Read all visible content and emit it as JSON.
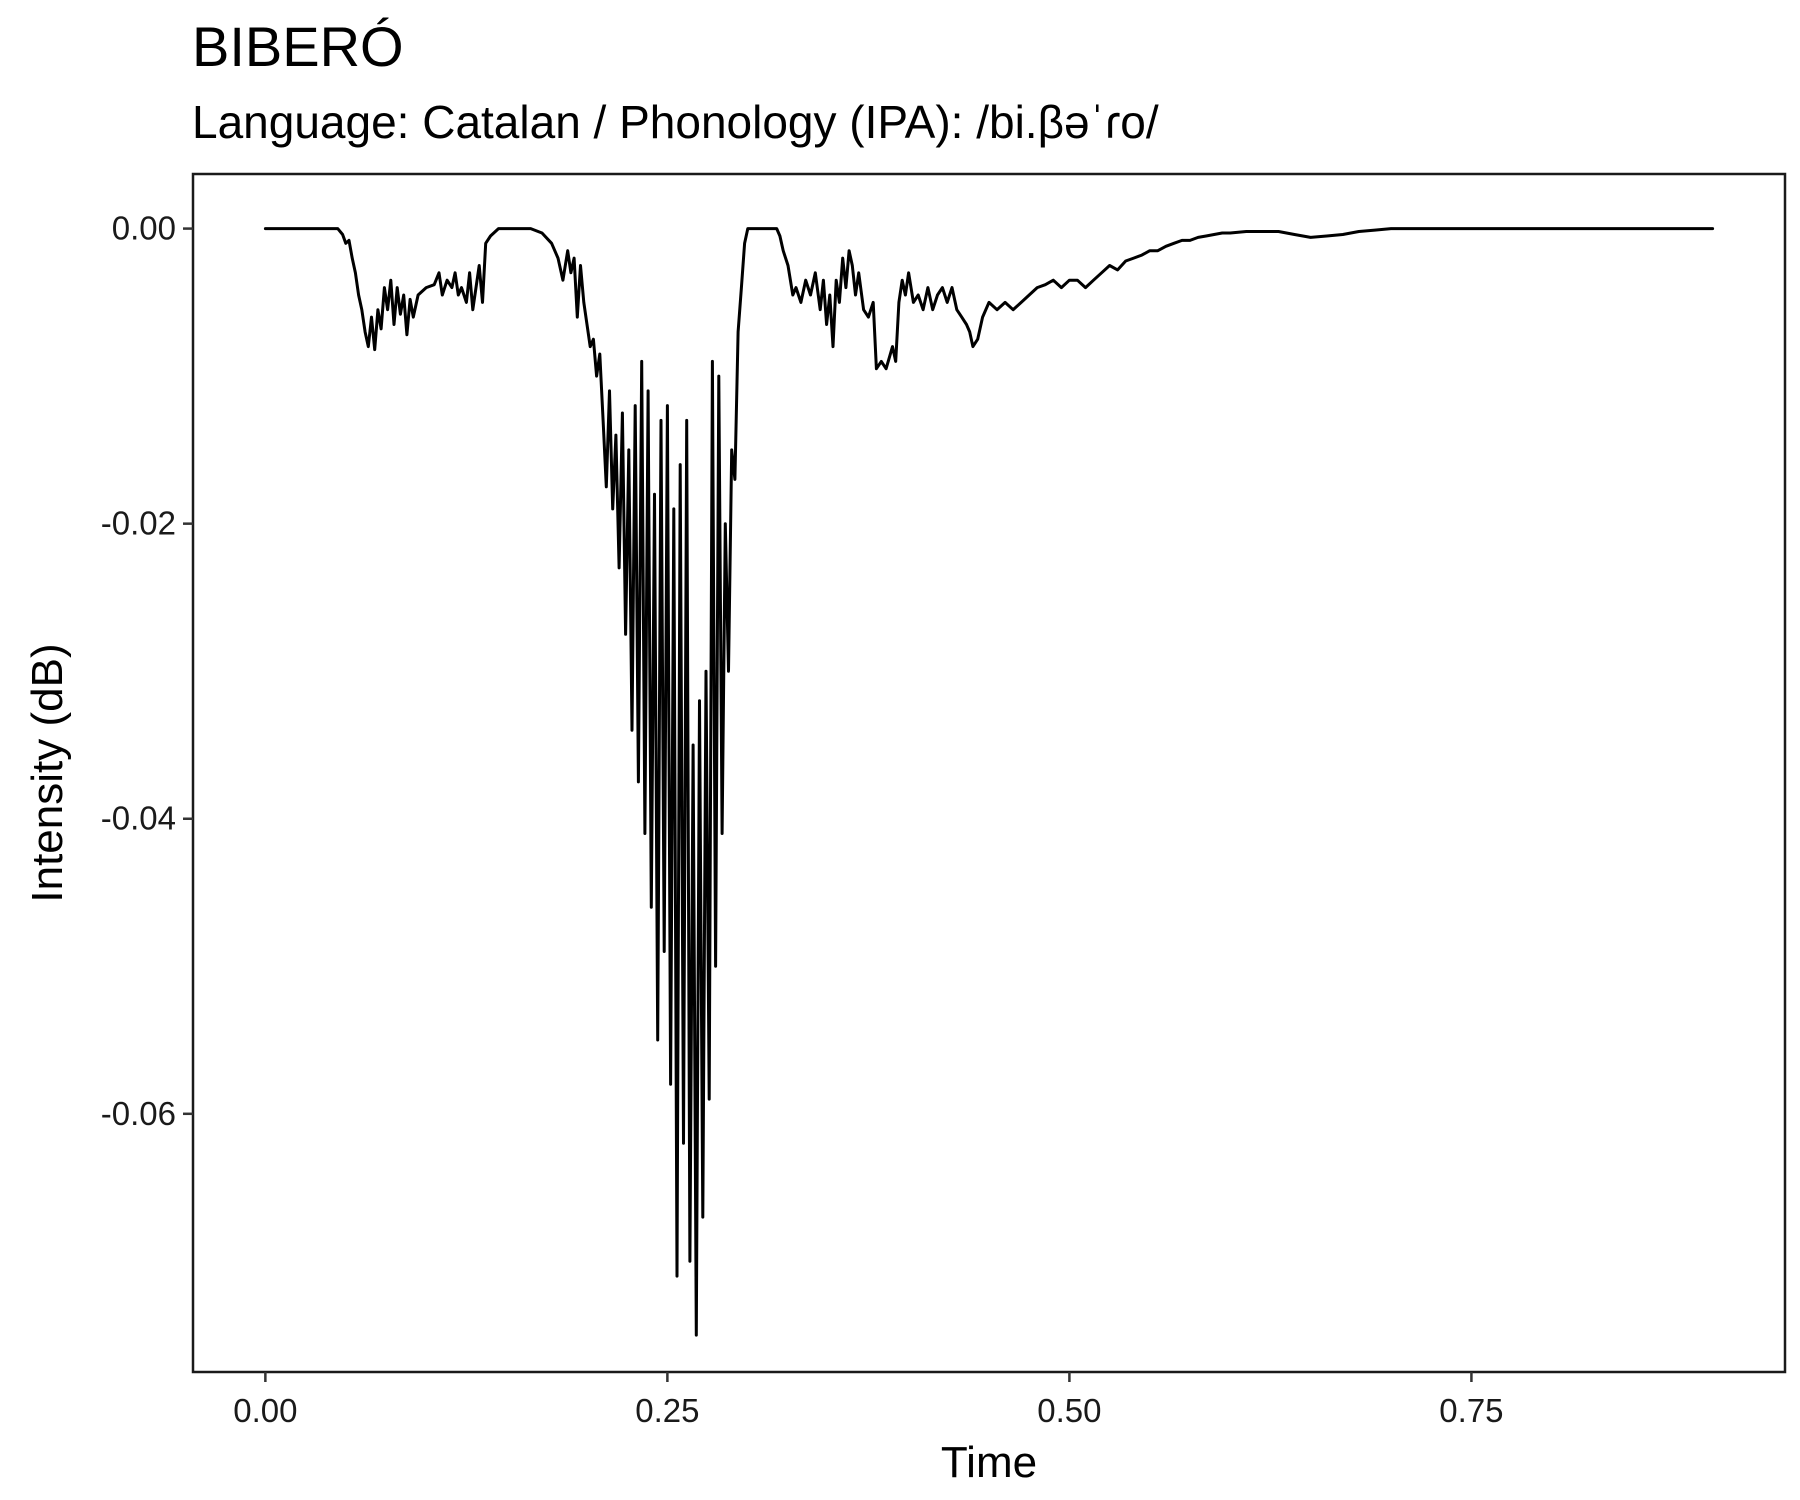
{
  "chart_data": {
    "type": "line",
    "title": "BIBERÓ",
    "subtitle": "Language: Catalan / Phonology (IPA): /bi.βəˈɾo/",
    "xlabel": "Time",
    "ylabel": "Intensity (dB)",
    "xlim": [
      -0.045,
      0.945
    ],
    "ylim": [
      -0.0775,
      0.0037
    ],
    "x_ticks": [
      0.0,
      0.25,
      0.5,
      0.75
    ],
    "x_tick_labels": [
      "0.00",
      "0.25",
      "0.50",
      "0.75"
    ],
    "y_ticks": [
      0.0,
      -0.02,
      -0.04,
      -0.06
    ],
    "y_tick_labels": [
      "0.00",
      "-0.02",
      "-0.04",
      "-0.06"
    ],
    "grid": false,
    "legend": "none",
    "line_color": "#000000",
    "series": [
      {
        "points": [
          [
            0.0,
            0.0
          ],
          [
            0.045,
            0.0
          ],
          [
            0.048,
            -0.0004
          ],
          [
            0.05,
            -0.001
          ],
          [
            0.052,
            -0.0008
          ],
          [
            0.054,
            -0.002
          ],
          [
            0.056,
            -0.003
          ],
          [
            0.058,
            -0.0045
          ],
          [
            0.06,
            -0.0055
          ],
          [
            0.062,
            -0.007
          ],
          [
            0.064,
            -0.008
          ],
          [
            0.066,
            -0.006
          ],
          [
            0.068,
            -0.0082
          ],
          [
            0.07,
            -0.0055
          ],
          [
            0.072,
            -0.0068
          ],
          [
            0.074,
            -0.004
          ],
          [
            0.076,
            -0.0055
          ],
          [
            0.078,
            -0.0035
          ],
          [
            0.08,
            -0.0065
          ],
          [
            0.082,
            -0.004
          ],
          [
            0.084,
            -0.0058
          ],
          [
            0.086,
            -0.0045
          ],
          [
            0.088,
            -0.0072
          ],
          [
            0.09,
            -0.0048
          ],
          [
            0.092,
            -0.006
          ],
          [
            0.095,
            -0.0045
          ],
          [
            0.1,
            -0.004
          ],
          [
            0.105,
            -0.0038
          ],
          [
            0.108,
            -0.003
          ],
          [
            0.11,
            -0.0045
          ],
          [
            0.113,
            -0.0035
          ],
          [
            0.116,
            -0.004
          ],
          [
            0.118,
            -0.003
          ],
          [
            0.12,
            -0.0045
          ],
          [
            0.122,
            -0.004
          ],
          [
            0.125,
            -0.005
          ],
          [
            0.127,
            -0.003
          ],
          [
            0.129,
            -0.0055
          ],
          [
            0.131,
            -0.004
          ],
          [
            0.133,
            -0.0025
          ],
          [
            0.135,
            -0.005
          ],
          [
            0.137,
            -0.001
          ],
          [
            0.14,
            -0.0005
          ],
          [
            0.145,
            0.0
          ],
          [
            0.155,
            0.0
          ],
          [
            0.165,
            0.0
          ],
          [
            0.172,
            -0.0003
          ],
          [
            0.178,
            -0.001
          ],
          [
            0.182,
            -0.002
          ],
          [
            0.185,
            -0.0035
          ],
          [
            0.188,
            -0.0015
          ],
          [
            0.19,
            -0.003
          ],
          [
            0.192,
            -0.002
          ],
          [
            0.194,
            -0.006
          ],
          [
            0.196,
            -0.0025
          ],
          [
            0.198,
            -0.005
          ],
          [
            0.2,
            -0.0065
          ],
          [
            0.202,
            -0.008
          ],
          [
            0.204,
            -0.0075
          ],
          [
            0.206,
            -0.01
          ],
          [
            0.208,
            -0.0085
          ],
          [
            0.21,
            -0.013
          ],
          [
            0.212,
            -0.0175
          ],
          [
            0.214,
            -0.011
          ],
          [
            0.216,
            -0.019
          ],
          [
            0.218,
            -0.014
          ],
          [
            0.22,
            -0.023
          ],
          [
            0.222,
            -0.0125
          ],
          [
            0.224,
            -0.0275
          ],
          [
            0.226,
            -0.015
          ],
          [
            0.228,
            -0.034
          ],
          [
            0.23,
            -0.012
          ],
          [
            0.232,
            -0.0375
          ],
          [
            0.234,
            -0.009
          ],
          [
            0.236,
            -0.041
          ],
          [
            0.238,
            -0.011
          ],
          [
            0.24,
            -0.046
          ],
          [
            0.242,
            -0.018
          ],
          [
            0.244,
            -0.055
          ],
          [
            0.246,
            -0.013
          ],
          [
            0.248,
            -0.049
          ],
          [
            0.25,
            -0.012
          ],
          [
            0.252,
            -0.058
          ],
          [
            0.254,
            -0.019
          ],
          [
            0.256,
            -0.071
          ],
          [
            0.258,
            -0.016
          ],
          [
            0.26,
            -0.062
          ],
          [
            0.262,
            -0.013
          ],
          [
            0.264,
            -0.07
          ],
          [
            0.266,
            -0.035
          ],
          [
            0.268,
            -0.075
          ],
          [
            0.27,
            -0.032
          ],
          [
            0.272,
            -0.067
          ],
          [
            0.274,
            -0.03
          ],
          [
            0.276,
            -0.059
          ],
          [
            0.278,
            -0.009
          ],
          [
            0.28,
            -0.05
          ],
          [
            0.282,
            -0.01
          ],
          [
            0.284,
            -0.041
          ],
          [
            0.286,
            -0.02
          ],
          [
            0.288,
            -0.03
          ],
          [
            0.29,
            -0.015
          ],
          [
            0.292,
            -0.017
          ],
          [
            0.294,
            -0.007
          ],
          [
            0.296,
            -0.004
          ],
          [
            0.298,
            -0.001
          ],
          [
            0.3,
            0.0
          ],
          [
            0.31,
            0.0
          ],
          [
            0.318,
            0.0
          ],
          [
            0.32,
            -0.0005
          ],
          [
            0.322,
            -0.0015
          ],
          [
            0.325,
            -0.0025
          ],
          [
            0.328,
            -0.0045
          ],
          [
            0.33,
            -0.004
          ],
          [
            0.333,
            -0.005
          ],
          [
            0.336,
            -0.0035
          ],
          [
            0.339,
            -0.0045
          ],
          [
            0.342,
            -0.003
          ],
          [
            0.345,
            -0.0055
          ],
          [
            0.347,
            -0.0035
          ],
          [
            0.349,
            -0.0065
          ],
          [
            0.351,
            -0.0045
          ],
          [
            0.353,
            -0.008
          ],
          [
            0.355,
            -0.0035
          ],
          [
            0.357,
            -0.005
          ],
          [
            0.359,
            -0.002
          ],
          [
            0.361,
            -0.004
          ],
          [
            0.363,
            -0.0015
          ],
          [
            0.365,
            -0.0025
          ],
          [
            0.367,
            -0.0045
          ],
          [
            0.369,
            -0.003
          ],
          [
            0.372,
            -0.0055
          ],
          [
            0.375,
            -0.006
          ],
          [
            0.378,
            -0.005
          ],
          [
            0.38,
            -0.0095
          ],
          [
            0.383,
            -0.009
          ],
          [
            0.386,
            -0.0095
          ],
          [
            0.39,
            -0.008
          ],
          [
            0.392,
            -0.009
          ],
          [
            0.394,
            -0.005
          ],
          [
            0.396,
            -0.0035
          ],
          [
            0.398,
            -0.0045
          ],
          [
            0.4,
            -0.003
          ],
          [
            0.403,
            -0.005
          ],
          [
            0.406,
            -0.0045
          ],
          [
            0.409,
            -0.0055
          ],
          [
            0.412,
            -0.004
          ],
          [
            0.415,
            -0.0055
          ],
          [
            0.418,
            -0.0045
          ],
          [
            0.421,
            -0.004
          ],
          [
            0.424,
            -0.005
          ],
          [
            0.427,
            -0.004
          ],
          [
            0.43,
            -0.0055
          ],
          [
            0.433,
            -0.006
          ],
          [
            0.436,
            -0.0065
          ],
          [
            0.438,
            -0.007
          ],
          [
            0.44,
            -0.008
          ],
          [
            0.443,
            -0.0075
          ],
          [
            0.446,
            -0.006
          ],
          [
            0.45,
            -0.005
          ],
          [
            0.455,
            -0.0055
          ],
          [
            0.46,
            -0.005
          ],
          [
            0.465,
            -0.0055
          ],
          [
            0.47,
            -0.005
          ],
          [
            0.475,
            -0.0045
          ],
          [
            0.48,
            -0.004
          ],
          [
            0.485,
            -0.0038
          ],
          [
            0.49,
            -0.0035
          ],
          [
            0.495,
            -0.004
          ],
          [
            0.5,
            -0.0035
          ],
          [
            0.505,
            -0.0035
          ],
          [
            0.51,
            -0.004
          ],
          [
            0.515,
            -0.0035
          ],
          [
            0.52,
            -0.003
          ],
          [
            0.525,
            -0.0025
          ],
          [
            0.53,
            -0.0028
          ],
          [
            0.535,
            -0.0022
          ],
          [
            0.54,
            -0.002
          ],
          [
            0.545,
            -0.0018
          ],
          [
            0.55,
            -0.0015
          ],
          [
            0.555,
            -0.0015
          ],
          [
            0.56,
            -0.0012
          ],
          [
            0.565,
            -0.001
          ],
          [
            0.57,
            -0.0008
          ],
          [
            0.575,
            -0.0008
          ],
          [
            0.58,
            -0.0006
          ],
          [
            0.585,
            -0.0005
          ],
          [
            0.59,
            -0.0004
          ],
          [
            0.595,
            -0.0003
          ],
          [
            0.6,
            -0.0003
          ],
          [
            0.61,
            -0.0002
          ],
          [
            0.62,
            -0.0002
          ],
          [
            0.63,
            -0.0002
          ],
          [
            0.64,
            -0.0004
          ],
          [
            0.65,
            -0.0006
          ],
          [
            0.66,
            -0.0005
          ],
          [
            0.67,
            -0.0004
          ],
          [
            0.68,
            -0.0002
          ],
          [
            0.69,
            -0.0001
          ],
          [
            0.7,
            0.0
          ],
          [
            0.75,
            0.0
          ],
          [
            0.8,
            0.0
          ],
          [
            0.85,
            0.0
          ],
          [
            0.9,
            0.0
          ]
        ]
      }
    ]
  }
}
